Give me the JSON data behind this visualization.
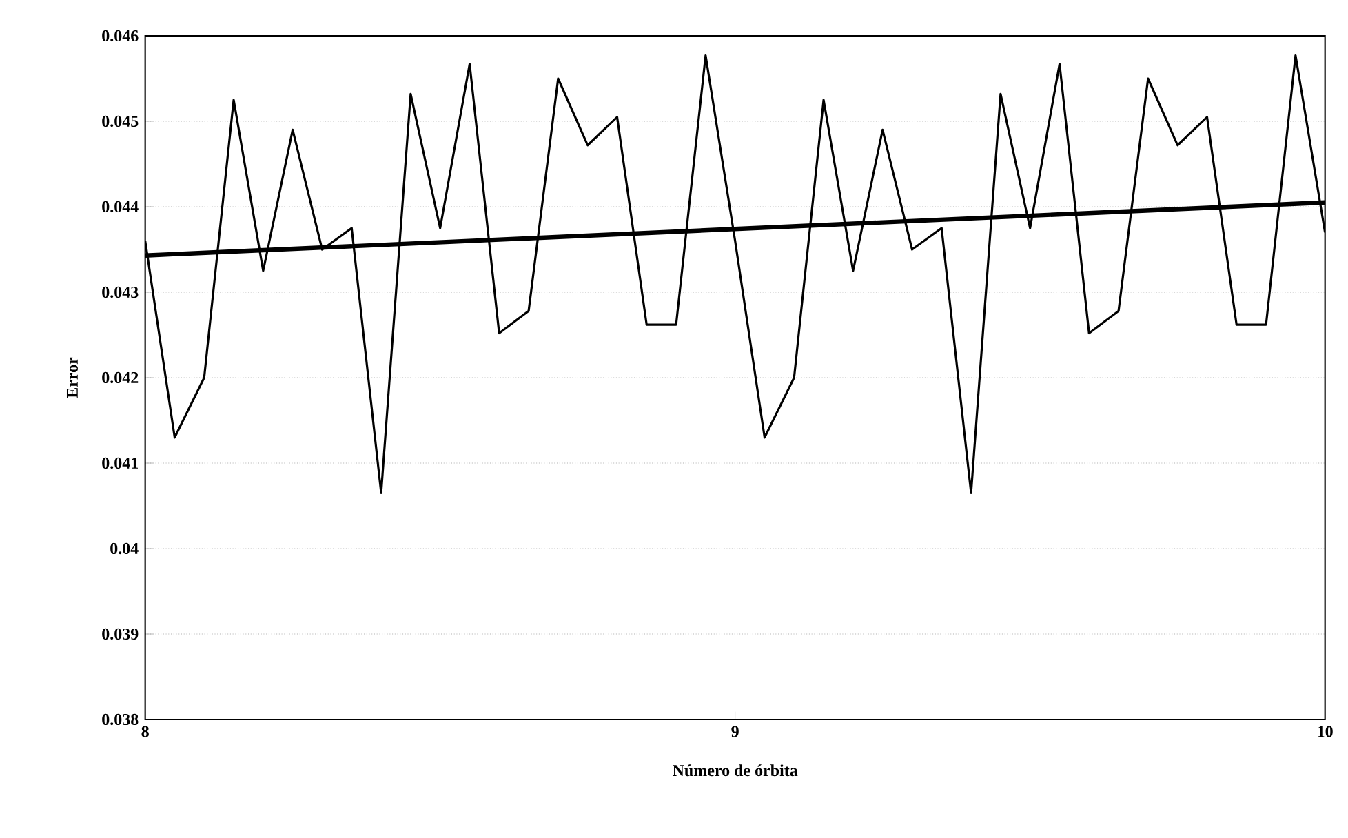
{
  "chart_data": {
    "type": "line",
    "xlabel": "Número de órbita",
    "ylabel": "Error",
    "xlim": [
      8,
      10
    ],
    "xticks": [
      8,
      9,
      10
    ],
    "ylim": [
      0.038,
      0.046
    ],
    "yticks": [
      0.038,
      0.039,
      {
        "value": 0.04,
        "label": "0.04"
      },
      0.041,
      0.042,
      0.043,
      0.044,
      0.045,
      0.046
    ],
    "grid": "y",
    "marker": "none",
    "line_style": "solid",
    "series": [
      {
        "color": "#000000",
        "x": [
          8.0,
          8.05,
          8.1,
          8.15,
          8.2,
          8.25,
          8.3,
          8.35,
          8.4,
          8.45,
          8.5,
          8.55,
          8.6,
          8.65,
          8.7,
          8.75,
          8.8,
          8.85,
          8.9,
          8.95,
          9.0,
          9.05,
          9.1,
          9.15,
          9.2,
          9.25,
          9.3,
          9.35,
          9.4,
          9.45,
          9.5,
          9.55,
          9.6,
          9.65,
          9.7,
          9.75,
          9.8,
          9.85,
          9.9,
          9.95,
          10.0
        ],
        "values": [
          0.0436,
          0.0413,
          0.042,
          0.04525,
          0.04325,
          0.0449,
          0.0435,
          0.04375,
          0.04065,
          0.04532,
          0.04375,
          0.04567,
          0.04252,
          0.04278,
          0.0455,
          0.04472,
          0.04505,
          0.04262,
          0.04262,
          0.04577,
          0.0436,
          0.0413,
          0.042,
          0.04525,
          0.04325,
          0.0449,
          0.0435,
          0.04375,
          0.04065,
          0.04532,
          0.04375,
          0.04567,
          0.04252,
          0.04278,
          0.0455,
          0.04472,
          0.04505,
          0.04262,
          0.04262,
          0.04577,
          0.0437
        ]
      },
      {
        "type": "line",
        "color": "#000000",
        "x": [
          8,
          10
        ],
        "values": [
          0.04343,
          0.04405
        ]
      }
    ]
  }
}
